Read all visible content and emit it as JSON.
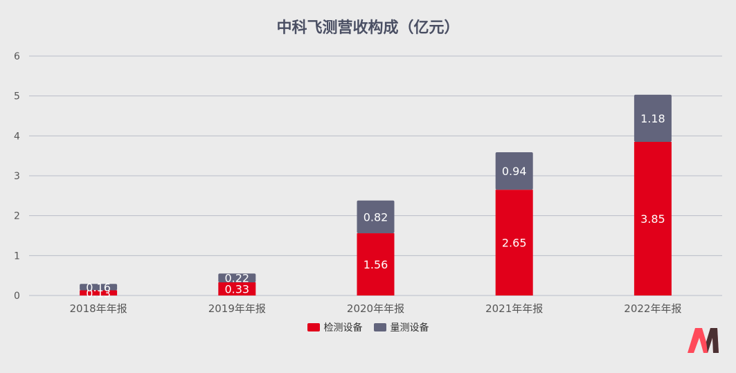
{
  "colors": {
    "primary": "#e1001a",
    "secondary": "#62647c",
    "grid": "#b9bcc8"
  },
  "chart_data": {
    "type": "bar",
    "stacked": true,
    "title": "中科飞测营收构成（亿元）",
    "categories": [
      "2018年年报",
      "2019年年报",
      "2020年年报",
      "2021年年报",
      "2022年年报"
    ],
    "series": [
      {
        "name": "检测设备",
        "values": [
          0.13,
          0.33,
          1.56,
          2.65,
          3.85
        ]
      },
      {
        "name": "量测设备",
        "values": [
          0.16,
          0.22,
          0.82,
          0.94,
          1.18
        ]
      }
    ],
    "ylim": [
      0,
      6
    ],
    "yticks": [
      0,
      1,
      2,
      3,
      4,
      5,
      6
    ],
    "grid": true,
    "legend_position": "bottom"
  }
}
